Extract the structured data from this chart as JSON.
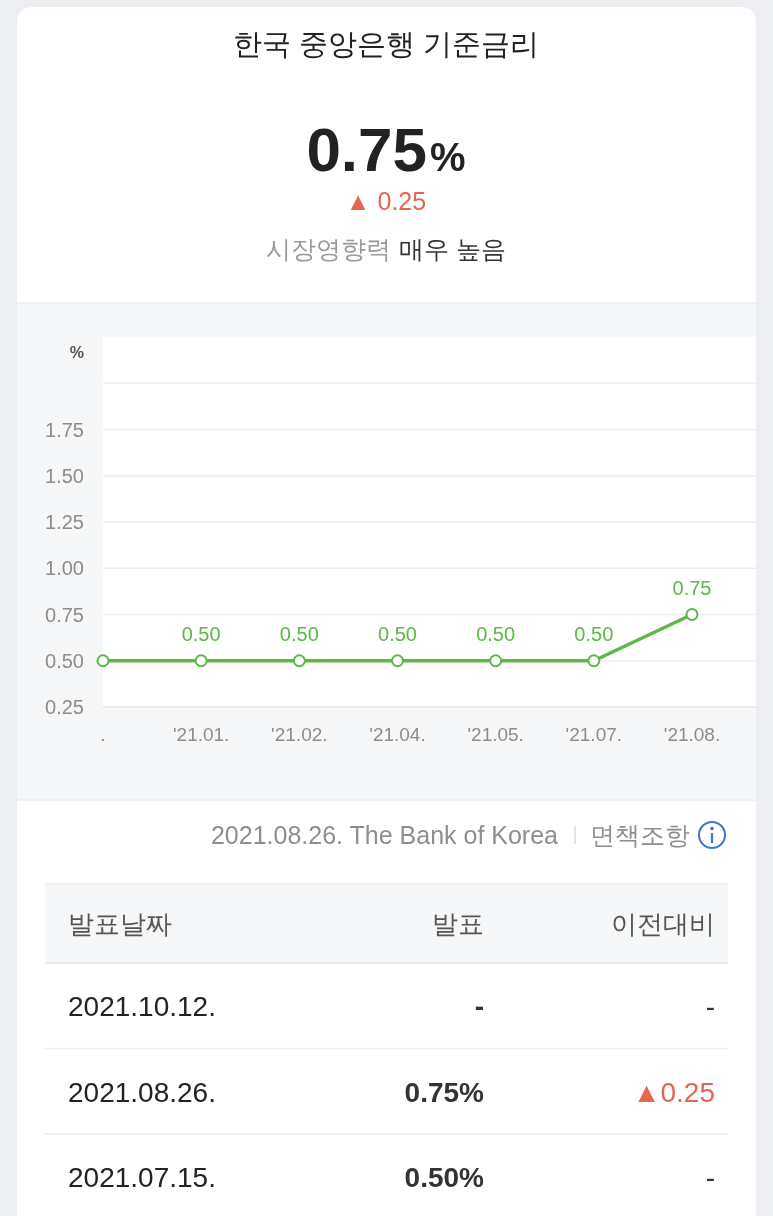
{
  "chart_data": [
    {
      "type": "other",
      "title": "한국 중앙은행 기준금리",
      "annotations": [
        "0.75",
        "%",
        "▲ 0.25",
        "시장영향력",
        "매우 높음"
      ],
      "colors": [
        "#222222",
        "#222222",
        "#e5664f",
        "#9a9a9a",
        "#333333"
      ]
    },
    {
      "type": "line",
      "ylabel": "%",
      "categories": [
        ".",
        "'21.01.",
        "'21.02.",
        "'21.04.",
        "'21.05.",
        "'21.07.",
        "'21.08."
      ],
      "series": [
        {
          "color": "#5cb847",
          "values": [
            0.5,
            0.5,
            0.5,
            0.5,
            0.5,
            0.5,
            0.75
          ],
          "value_labels": [
            null,
            "0.50",
            "0.50",
            "0.50",
            "0.50",
            "0.50",
            "0.75"
          ]
        }
      ],
      "ylim": [
        0.25,
        2.25
      ],
      "yticks": [
        0.25,
        {
          "value": 0.5,
          "label": "0.50"
        },
        0.75,
        {
          "value": 1,
          "label": "1.00"
        },
        1.25,
        {
          "value": 1.5,
          "label": "1.50"
        },
        1.75,
        {
          "value": 2,
          "label": null
        }
      ],
      "grid": "y",
      "marker": "circle",
      "annotations": [
        "2021.08.26. The Bank of Korea",
        "면책조항"
      ]
    },
    {
      "type": "other",
      "annotations": [
        "발표날짜",
        "발표",
        "이전대비",
        "2021.10.12.",
        "-",
        "-",
        "2021.08.26.",
        "0.75%",
        "▲0.25",
        "2021.07.15.",
        "0.50%",
        "-"
      ],
      "colors": [
        "#555555",
        "#555555",
        "#555555",
        "#222222",
        "#333333",
        "#333333",
        "#222222",
        "#333333",
        "#e5664f",
        "#222222",
        "#333333",
        "#333333"
      ]
    }
  ]
}
